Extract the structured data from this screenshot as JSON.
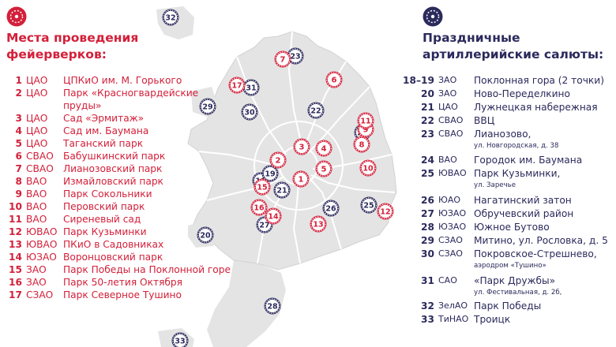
{
  "fireworks": {
    "title_lines": [
      "Места проведения",
      "фейерверков:"
    ],
    "items": [
      {
        "num": "1",
        "district": "ЦАО",
        "name": [
          "ЦПКиО им. М. Горького"
        ]
      },
      {
        "num": "2",
        "district": "ЦАО",
        "name": [
          "Парк «Красногвардейские",
          "пруды»"
        ]
      },
      {
        "num": "3",
        "district": "ЦАО",
        "name": [
          "Сад «Эрмитаж»"
        ]
      },
      {
        "num": "4",
        "district": "ЦАО",
        "name": [
          "Сад им. Баумана"
        ]
      },
      {
        "num": "5",
        "district": "ЦАО",
        "name": [
          "Таганский парк"
        ]
      },
      {
        "num": "6",
        "district": "СВАО",
        "name": [
          "Бабушкинский парк"
        ]
      },
      {
        "num": "7",
        "district": "СВАО",
        "name": [
          "Лианозовский парк"
        ]
      },
      {
        "num": "8",
        "district": "ВАО",
        "name": [
          "Измайловский парк"
        ]
      },
      {
        "num": "9",
        "district": "ВАО",
        "name": [
          "Парк Сокольники"
        ]
      },
      {
        "num": "10",
        "district": "ВАО",
        "name": [
          "Перовский парк"
        ]
      },
      {
        "num": "11",
        "district": "ВАО",
        "name": [
          "Сиреневый сад"
        ]
      },
      {
        "num": "12",
        "district": "ЮВАО",
        "name": [
          "Парк Кузьминки"
        ]
      },
      {
        "num": "13",
        "district": "ЮВАО",
        "name": [
          "ПКиО в Садовниках"
        ]
      },
      {
        "num": "14",
        "district": "ЮЗАО",
        "name": [
          "Воронцовский парк"
        ]
      },
      {
        "num": "15",
        "district": "ЗАО",
        "name": [
          "Парк Победы на Поклонной горе"
        ]
      },
      {
        "num": "16",
        "district": "ЗАО",
        "name": [
          "Парк 50-летия Октября"
        ]
      },
      {
        "num": "17",
        "district": "СЗАО",
        "name": [
          "Парк Северное Тушино"
        ]
      }
    ]
  },
  "salutes": {
    "title_lines": [
      "Праздничные",
      "артиллерийские салюты:"
    ],
    "items": [
      {
        "num": "18–19",
        "district": "ЗАО",
        "name": "Поклонная гора  (2 точки)",
        "sub": ""
      },
      {
        "num": "20",
        "district": "ЗАО",
        "name": "Ново-Переделкино",
        "sub": ""
      },
      {
        "num": "21",
        "district": "ЦАО",
        "name": "Лужнецкая набережная",
        "sub": ""
      },
      {
        "num": "22",
        "district": "СВАО",
        "name": "ВВЦ",
        "sub": ""
      },
      {
        "num": "23",
        "district": "СВАО",
        "name": "Лианозово,",
        "sub": "ул. Новгородская, д. 38"
      },
      {
        "num": "24",
        "district": "ВАО",
        "name": "Городок им. Баумана",
        "sub": ""
      },
      {
        "num": "25",
        "district": "ЮВАО",
        "name": "Парк Кузьминки,",
        "sub": "ул. Заречье"
      },
      {
        "num": "26",
        "district": "ЮАО",
        "name": "Нагатинский затон",
        "sub": ""
      },
      {
        "num": "27",
        "district": "ЮЗАО",
        "name": "Обручевский район",
        "sub": ""
      },
      {
        "num": "28",
        "district": "ЮЗАО",
        "name": "Южное Бутово",
        "sub": ""
      },
      {
        "num": "29",
        "district": "СЗАО",
        "name": "Митино, ул. Рословка, д. 5",
        "sub": ""
      },
      {
        "num": "30",
        "district": "СЗАО",
        "name": "Покровское-Стрешнево,",
        "sub": "аэродром «Тушино»"
      },
      {
        "num": "31",
        "district": "САО",
        "name": "«Парк Дружбы»",
        "sub": "ул. Фестивальная, д. 2б,"
      },
      {
        "num": "32",
        "district": "ЗелАО",
        "name": "Парк Победы",
        "sub": ""
      },
      {
        "num": "33",
        "district": "ТиНАО",
        "name": "Троицк",
        "sub": ""
      }
    ]
  },
  "map_markers": {
    "fireworks": [
      "1",
      "2",
      "3",
      "4",
      "5",
      "6",
      "7",
      "8",
      "9",
      "10",
      "11",
      "12",
      "13",
      "14",
      "15",
      "16",
      "17"
    ],
    "salutes": [
      "18",
      "19",
      "20",
      "21",
      "22",
      "23",
      "24",
      "25",
      "26",
      "27",
      "28",
      "29",
      "30",
      "31",
      "32",
      "33"
    ]
  },
  "colors": {
    "fireworks": "#d3203a",
    "salutes": "#2b2a5c",
    "map_fill": "#e4e4e4",
    "map_lines": "#ffffff",
    "map_outline": "#cfcfcf"
  }
}
